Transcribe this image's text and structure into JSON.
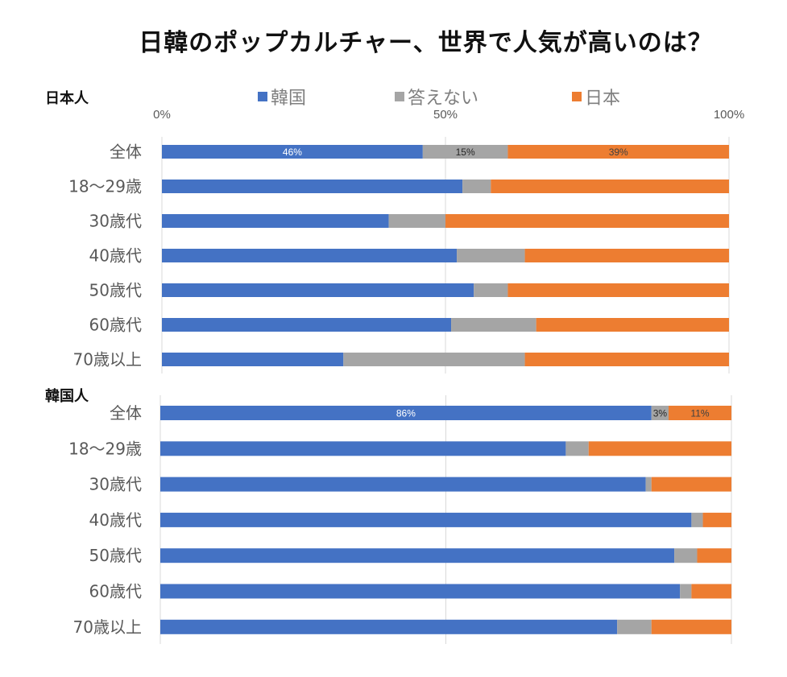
{
  "title": "日韓のポップカルチャー、世界で人気が高いのは？",
  "legend": [
    {
      "label": "韓国",
      "color": "#4472C4"
    },
    {
      "label": "答えない",
      "color": "#A5A5A5"
    },
    {
      "label": "日本",
      "color": "#ED7D31"
    }
  ],
  "chart_data": [
    {
      "type": "bar",
      "orientation": "horizontal",
      "stacked": "100%",
      "title": "日本人",
      "categories": [
        "全体",
        "18〜29歳",
        "30歳代",
        "40歳代",
        "50歳代",
        "60歳代",
        "70歳以上"
      ],
      "series": [
        {
          "name": "韓国",
          "color": "#4472C4",
          "values": [
            46,
            53,
            40,
            52,
            55,
            51,
            32
          ]
        },
        {
          "name": "答えない",
          "color": "#A5A5A5",
          "values": [
            15,
            5,
            10,
            12,
            6,
            15,
            32
          ]
        },
        {
          "name": "日本",
          "color": "#ED7D31",
          "values": [
            39,
            42,
            50,
            36,
            39,
            34,
            36
          ]
        }
      ],
      "data_labels": {
        "全体": [
          "46%",
          "15%",
          "39%"
        ]
      },
      "xlim": [
        0,
        100
      ],
      "x_ticks": [
        "0%",
        "50%",
        "100%"
      ],
      "grid": true,
      "legend_position": "top"
    },
    {
      "type": "bar",
      "orientation": "horizontal",
      "stacked": "100%",
      "title": "韓国人",
      "categories": [
        "全体",
        "18〜29歳",
        "30歳代",
        "40歳代",
        "50歳代",
        "60歳代",
        "70歳以上"
      ],
      "series": [
        {
          "name": "韓国",
          "color": "#4472C4",
          "values": [
            86,
            71,
            85,
            93,
            90,
            91,
            80
          ]
        },
        {
          "name": "答えない",
          "color": "#A5A5A5",
          "values": [
            3,
            4,
            1,
            2,
            4,
            2,
            6
          ]
        },
        {
          "name": "日本",
          "color": "#ED7D31",
          "values": [
            11,
            25,
            14,
            5,
            6,
            7,
            14
          ]
        }
      ],
      "data_labels": {
        "全体": [
          "86%",
          "3%",
          "11%"
        ]
      },
      "xlim": [
        0,
        100
      ],
      "grid": true
    }
  ]
}
